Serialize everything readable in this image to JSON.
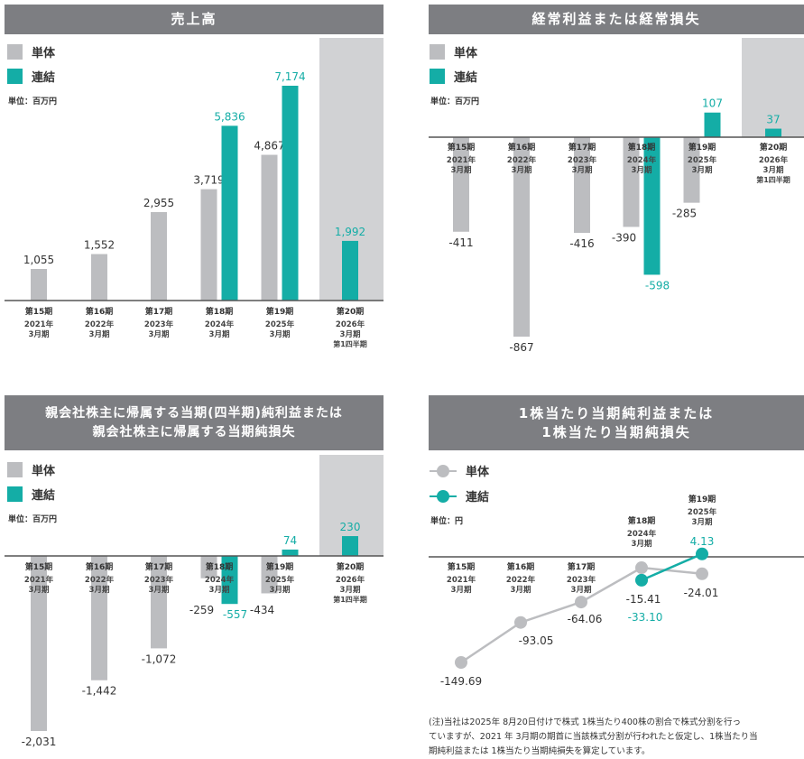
{
  "legend": {
    "single": "単体",
    "consolidated": "連結"
  },
  "colors": {
    "single": "#bcbdc0",
    "consolidated": "#14ada6",
    "highlight": "#d1d2d4",
    "header": "#7d7e82"
  },
  "chart_data": [
    {
      "type": "bar",
      "title": "売上高",
      "unit": "単位：百万円",
      "categories": [
        {
          "period": "第15期",
          "year": "2021年",
          "month": "3月期"
        },
        {
          "period": "第16期",
          "year": "2022年",
          "month": "3月期"
        },
        {
          "period": "第17期",
          "year": "2023年",
          "month": "3月期"
        },
        {
          "period": "第18期",
          "year": "2024年",
          "month": "3月期"
        },
        {
          "period": "第19期",
          "year": "2025年",
          "month": "3月期"
        },
        {
          "period": "第20期",
          "year": "2026年",
          "month": "3月期",
          "extra": "第1四半期"
        }
      ],
      "series": [
        {
          "name": "単体",
          "values": [
            1055,
            1552,
            2955,
            3719,
            4867,
            null
          ],
          "labels": [
            "1,055",
            "1,552",
            "2,955",
            "3,719",
            "4,867",
            null
          ]
        },
        {
          "name": "連結",
          "values": [
            null,
            null,
            null,
            5836,
            7174,
            1992
          ],
          "labels": [
            null,
            null,
            null,
            "5,836",
            "7,174",
            "1,992"
          ]
        }
      ]
    },
    {
      "type": "bar",
      "title": "経常利益または経常損失",
      "unit": "単位：百万円",
      "categories": [
        {
          "period": "第15期",
          "year": "2021年",
          "month": "3月期"
        },
        {
          "period": "第16期",
          "year": "2022年",
          "month": "3月期"
        },
        {
          "period": "第17期",
          "year": "2023年",
          "month": "3月期"
        },
        {
          "period": "第18期",
          "year": "2024年",
          "month": "3月期"
        },
        {
          "period": "第19期",
          "year": "2025年",
          "month": "3月期"
        },
        {
          "period": "第20期",
          "year": "2026年",
          "month": "3月期",
          "extra": "第1四半期"
        }
      ],
      "series": [
        {
          "name": "単体",
          "values": [
            -411,
            -867,
            -416,
            -390,
            -285,
            null
          ],
          "labels": [
            "-411",
            "-867",
            "-416",
            "-390",
            "-285",
            null
          ]
        },
        {
          "name": "連結",
          "values": [
            null,
            null,
            null,
            -598,
            107,
            37
          ],
          "labels": [
            null,
            null,
            null,
            "-598",
            "107",
            "37"
          ]
        }
      ]
    },
    {
      "type": "bar",
      "title": "親会社株主に帰属する当期(四半期)純利益または",
      "title2": "親会社株主に帰属する当期純損失",
      "unit": "単位：百万円",
      "categories": [
        {
          "period": "第15期",
          "year": "2021年",
          "month": "3月期"
        },
        {
          "period": "第16期",
          "year": "2022年",
          "month": "3月期"
        },
        {
          "period": "第17期",
          "year": "2023年",
          "month": "3月期"
        },
        {
          "period": "第18期",
          "year": "2024年",
          "month": "3月期"
        },
        {
          "period": "第19期",
          "year": "2025年",
          "month": "3月期"
        },
        {
          "period": "第20期",
          "year": "2026年",
          "month": "3月期",
          "extra": "第1四半期"
        }
      ],
      "series": [
        {
          "name": "単体",
          "values": [
            -2031,
            -1442,
            -1072,
            -259,
            -434,
            null
          ],
          "labels": [
            "-2,031",
            "-1,442",
            "-1,072",
            "-259",
            "-434",
            null
          ]
        },
        {
          "name": "連結",
          "values": [
            null,
            null,
            null,
            -557,
            74,
            230
          ],
          "labels": [
            null,
            null,
            null,
            "-557",
            "74",
            "230"
          ]
        }
      ]
    },
    {
      "type": "line",
      "title": "1株当たり当期純利益または",
      "title2": "1株当たり当期純損失",
      "unit": "単位：円",
      "categories": [
        {
          "period": "第15期",
          "year": "2021年",
          "month": "3月期"
        },
        {
          "period": "第16期",
          "year": "2022年",
          "month": "3月期"
        },
        {
          "period": "第17期",
          "year": "2023年",
          "month": "3月期"
        },
        {
          "period": "第18期",
          "year": "2024年",
          "month": "3月期"
        },
        {
          "period": "第19期",
          "year": "2025年",
          "month": "3月期"
        }
      ],
      "series": [
        {
          "name": "単体",
          "values": [
            -149.69,
            -93.05,
            -64.06,
            -15.41,
            -24.01
          ],
          "labels": [
            "-149.69",
            "-93.05",
            "-64.06",
            "-15.41",
            "-24.01"
          ]
        },
        {
          "name": "連結",
          "values": [
            null,
            null,
            null,
            -33.1,
            4.13
          ],
          "labels": [
            null,
            null,
            null,
            "-33.10",
            "4.13"
          ]
        }
      ]
    }
  ],
  "footnote": [
    "(注)当社は2025年 8月20日付けで株式 1株当たり400株の割合で株式分割を行っ",
    "ていますが、2021 年 3月期の期首に当該株式分割が行われたと仮定し、1株当たり当",
    "期純利益または 1株当たり当期純損失を算定しています。"
  ]
}
